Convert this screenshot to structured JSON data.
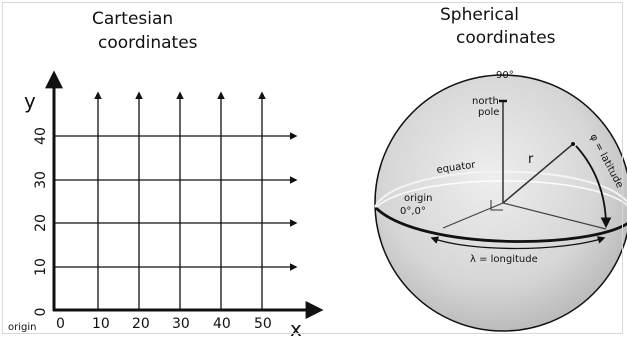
{
  "cartesian": {
    "title_line1": "Cartesian",
    "title_line2": "coordinates",
    "x_axis_label": "x",
    "y_axis_label": "y",
    "origin_label": "origin",
    "x_ticks": [
      "0",
      "10",
      "20",
      "30",
      "40",
      "50"
    ],
    "y_ticks": [
      "0",
      "10",
      "20",
      "30",
      "40"
    ]
  },
  "spherical": {
    "title_line1": "Spherical",
    "title_line2": "coordinates",
    "top_label": "90°",
    "north_label_line1": "north",
    "north_label_line2": "pole",
    "equator_label": "equator",
    "origin_label": "origin",
    "origin_coords": "0°,0°",
    "radius_label": "r",
    "latitude_label": "φ = latitude",
    "longitude_label": "λ = longitude"
  }
}
